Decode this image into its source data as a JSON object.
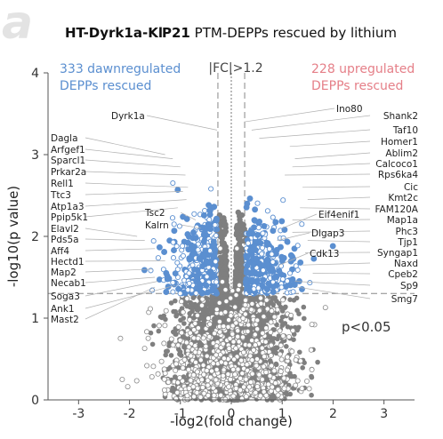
{
  "panel_letter": "a",
  "title_left": "HT-Dyrk1a-Kl",
  "title_right_bold": "P21",
  "title_right_rest": " PTM-DEPPs rescued by lithium",
  "colors": {
    "down": "#5b8fd0",
    "up": "#e57f88",
    "gray": "#7f7f7f",
    "open_marker": "#8a8a8a"
  },
  "chart_data": {
    "type": "scatter",
    "xlabel": "-log2(fold change)",
    "ylabel": "-log10(p value)",
    "xlim": [
      -3.6,
      3.6
    ],
    "ylim": [
      0,
      4
    ],
    "xticks": [
      -3,
      -2,
      -1,
      0,
      1,
      2,
      3
    ],
    "yticks": [
      0,
      1,
      2,
      3,
      4
    ],
    "fc_threshold_label": "|FC|>1.2",
    "fc_threshold_x": [
      -0.263,
      0.263
    ],
    "p_threshold_label": "p<0.05",
    "p_threshold_y": 1.301,
    "down_annotation": [
      "333 dawnregulated",
      "DEPPs rescued"
    ],
    "up_annotation": [
      "228 upregulated",
      "DEPPs rescued"
    ],
    "series": [
      {
        "name": "333 dawnregulated DEPPs rescued",
        "count": 333
      },
      {
        "name": "228 upregulated DEPPs rescued",
        "count": 228
      }
    ],
    "labeled_points": [
      {
        "label": "Dyrk1a",
        "x": -0.28,
        "y": 3.3
      },
      {
        "label": "Dagla",
        "x": -1.3,
        "y": 3.0
      },
      {
        "label": "Arfgef1",
        "x": -1.15,
        "y": 2.95
      },
      {
        "label": "Sparcl1",
        "x": -1.0,
        "y": 2.85
      },
      {
        "label": "Prkar2a",
        "x": -0.9,
        "y": 2.75
      },
      {
        "label": "Rell1",
        "x": -0.85,
        "y": 2.6
      },
      {
        "label": "Ttc3",
        "x": -0.95,
        "y": 2.55
      },
      {
        "label": "Atp1a3",
        "x": -0.88,
        "y": 2.45
      },
      {
        "label": "Ppip5k1",
        "x": -1.05,
        "y": 2.35
      },
      {
        "label": "Elavl2",
        "x": -1.85,
        "y": 2.0
      },
      {
        "label": "Pds5a",
        "x": -1.7,
        "y": 1.95
      },
      {
        "label": "Aff4",
        "x": -1.5,
        "y": 1.85
      },
      {
        "label": "Hectd1",
        "x": -1.3,
        "y": 1.7
      },
      {
        "label": "Map2",
        "x": -1.55,
        "y": 1.6
      },
      {
        "label": "Necab1",
        "x": -1.5,
        "y": 1.5
      },
      {
        "label": "Soga3",
        "x": -1.45,
        "y": 1.45
      },
      {
        "label": "Ank1",
        "x": -1.1,
        "y": 1.4
      },
      {
        "label": "Mast2",
        "x": -1.5,
        "y": 1.38
      },
      {
        "label": "Tsc2",
        "x": -0.7,
        "y": 2.2
      },
      {
        "label": "Kalrn",
        "x": -0.6,
        "y": 2.1
      },
      {
        "label": "Ino80",
        "x": 0.25,
        "y": 3.4
      },
      {
        "label": "Shank2",
        "x": 0.4,
        "y": 3.3
      },
      {
        "label": "Taf10",
        "x": 0.55,
        "y": 3.2
      },
      {
        "label": "Homer1",
        "x": 1.15,
        "y": 3.1
      },
      {
        "label": "Ablim2",
        "x": 1.25,
        "y": 2.95
      },
      {
        "label": "Calcoco1",
        "x": 1.2,
        "y": 2.85
      },
      {
        "label": "Rps6ka4",
        "x": 1.05,
        "y": 2.75
      },
      {
        "label": "Cic",
        "x": 1.4,
        "y": 2.6
      },
      {
        "label": "Kmt2c",
        "x": 1.5,
        "y": 2.45
      },
      {
        "label": "FAM120A",
        "x": 1.35,
        "y": 2.35
      },
      {
        "label": "Map1a",
        "x": 1.2,
        "y": 2.2
      },
      {
        "label": "Phc3",
        "x": 1.2,
        "y": 2.05
      },
      {
        "label": "Tjp1",
        "x": 1.5,
        "y": 1.95
      },
      {
        "label": "Syngap1",
        "x": 1.45,
        "y": 1.8
      },
      {
        "label": "Naxd",
        "x": 1.4,
        "y": 1.65
      },
      {
        "label": "Cpeb2",
        "x": 1.6,
        "y": 1.55
      },
      {
        "label": "Sp9",
        "x": 1.25,
        "y": 1.45
      },
      {
        "label": "Smg7",
        "x": 1.3,
        "y": 1.38
      },
      {
        "label": "Eif4enif1",
        "x": 1.0,
        "y": 2.1
      },
      {
        "label": "Dlgap3",
        "x": 0.9,
        "y": 1.95
      },
      {
        "label": "Cdk13",
        "x": 0.95,
        "y": 1.65
      }
    ]
  }
}
